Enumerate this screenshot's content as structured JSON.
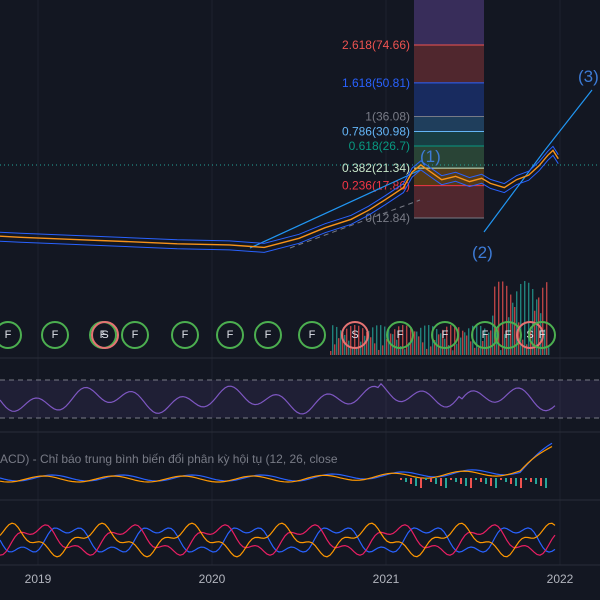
{
  "chart_data": {
    "type": "line",
    "x_ticks": [
      "2019",
      "2020",
      "2021",
      "2022"
    ],
    "fib_levels": [
      {
        "label": "2.618(74.66)",
        "ratio": 2.618,
        "value": 74.66,
        "color": "#ef5350"
      },
      {
        "label": "1.618(50.81)",
        "ratio": 1.618,
        "value": 50.81,
        "color": "#2962ff"
      },
      {
        "label": "1(36.08)",
        "ratio": 1,
        "value": 36.08,
        "color": "#787b86"
      },
      {
        "label": "0.786(30.98)",
        "ratio": 0.786,
        "value": 30.98,
        "color": "#64b5f6"
      },
      {
        "label": "0.618(26.7)",
        "ratio": 0.618,
        "value": 26.7,
        "color": "#089981"
      },
      {
        "label": "0.382(21.34)",
        "ratio": 0.382,
        "value": 21.34,
        "color": "#c8e6c9"
      },
      {
        "label": "0.236(17.86)",
        "ratio": 0.236,
        "value": 17.86,
        "color": "#f23645"
      },
      {
        "label": "0(12.84)",
        "ratio": 0,
        "value": 12.84,
        "color": "#787b86"
      }
    ],
    "wave_labels": [
      "(1)",
      "(2)",
      "(3)"
    ],
    "price_series": [
      [
        2018.0,
        4.2
      ],
      [
        2018.3,
        4.6
      ],
      [
        2018.6,
        4.4
      ],
      [
        2018.9,
        4.1
      ],
      [
        2019.2,
        3.9
      ],
      [
        2019.5,
        3.7
      ],
      [
        2019.8,
        3.5
      ],
      [
        2020.1,
        3.4
      ],
      [
        2020.3,
        3.2
      ],
      [
        2020.5,
        4.0
      ],
      [
        2020.65,
        5.2
      ],
      [
        2020.8,
        6.4
      ],
      [
        2020.9,
        8.0
      ],
      [
        2021.0,
        10.5
      ],
      [
        2021.1,
        14.0
      ],
      [
        2021.15,
        20.5
      ],
      [
        2021.2,
        24.5
      ],
      [
        2021.25,
        21.0
      ],
      [
        2021.32,
        17.0
      ],
      [
        2021.4,
        18.5
      ],
      [
        2021.48,
        16.2
      ],
      [
        2021.55,
        17.6
      ],
      [
        2021.6,
        15.5
      ],
      [
        2021.68,
        14.0
      ],
      [
        2021.75,
        17.0
      ],
      [
        2021.82,
        19.0
      ],
      [
        2021.88,
        24.0
      ],
      [
        2021.93,
        31.0
      ],
      [
        2021.96,
        35.0
      ],
      [
        2021.99,
        28.5
      ]
    ],
    "marker_labels": [
      "F",
      "F",
      "F",
      "F",
      "S",
      "F",
      "F",
      "F",
      "F",
      "S",
      "F",
      "F",
      "F",
      "F",
      "S",
      "F"
    ],
    "macd_title": "ACD) - Chỉ báo trung bình biến đổi phân kỳ hội tụ (12, 26, close"
  }
}
